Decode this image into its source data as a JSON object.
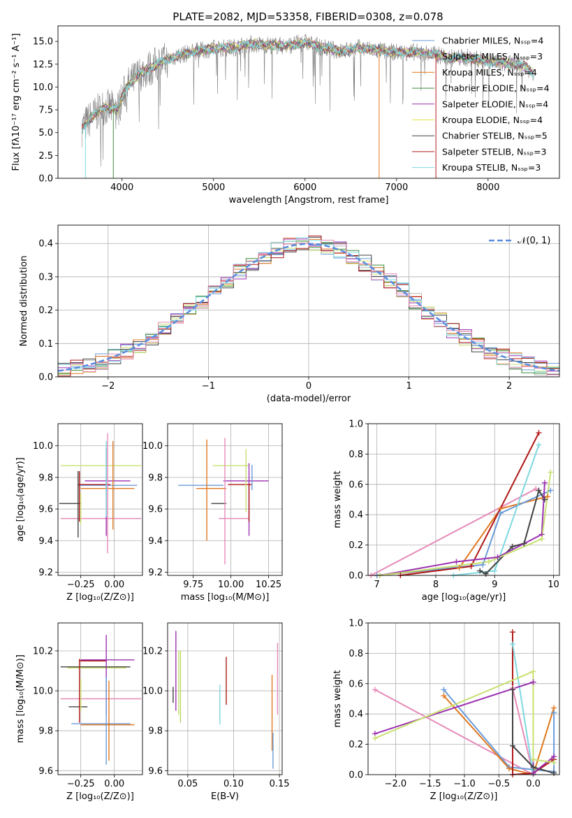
{
  "figure": {
    "title": "PLATE=2082, MJD=53358, FIBERID=0308, z=0.078"
  },
  "chart_data": [
    {
      "id": "spectrum",
      "type": "line",
      "xlabel": "wavelength [Angstrom, rest frame]",
      "ylabel": "Flux [fλ10⁻¹⁷ erg cm⁻² s⁻¹ A⁻¹]",
      "xlim": [
        3300,
        8780
      ],
      "ylim": [
        0,
        16.7
      ],
      "xticks": [
        4000,
        5000,
        6000,
        7000,
        8000
      ],
      "yticks": [
        0.0,
        2.5,
        5.0,
        7.5,
        10.0,
        12.5,
        15.0
      ],
      "grid": false,
      "legend_position": "upper right",
      "legend": [
        "Chabrier MILES, N_SSP=4",
        "Salpeter MILES, N_SSP=3",
        "Kroupa MILES, N_SSP=4",
        "Chabrier ELODIE, N_SSP=4",
        "Salpeter ELODIE, N_SSP=4",
        "Kroupa ELODIE, N_SSP=4",
        "Chabrier STELIB, N_SSP=5",
        "Salpeter STELIB, N_SSP=3",
        "Kroupa STELIB, N_SSP=3"
      ],
      "data_series": "grey",
      "continuum": {
        "x": [
          3560,
          3650,
          3800,
          3950,
          4050,
          4200,
          4400,
          4600,
          4800,
          5000,
          5200,
          5400,
          5600,
          5800,
          6000,
          6200,
          6400,
          6600,
          6800,
          7000,
          7200,
          7400,
          7600,
          7800,
          8000,
          8200,
          8400,
          8500
        ],
        "y": [
          5.5,
          6.5,
          7.8,
          7.5,
          10.0,
          11.5,
          12.6,
          13.4,
          13.9,
          14.2,
          14.3,
          14.7,
          14.6,
          14.5,
          14.9,
          14.3,
          13.9,
          14.3,
          14.0,
          13.8,
          13.8,
          13.6,
          13.2,
          13.2,
          12.8,
          12.6,
          12.3,
          11.5
        ]
      }
    },
    {
      "id": "residuals",
      "type": "step",
      "xlabel": "(data-model)/error",
      "ylabel": "Normed distribution",
      "xlim": [
        -2.5,
        2.5
      ],
      "ylim": [
        0,
        0.455
      ],
      "xticks": [
        -2,
        -1,
        0,
        1,
        2
      ],
      "yticks": [
        0.0,
        0.1,
        0.2,
        0.3,
        0.4
      ],
      "grid": true,
      "legend": [
        "𝒩(0, 1)"
      ],
      "legend_position": "upper right",
      "reference": {
        "mean": 0,
        "sigma": 1
      }
    },
    {
      "id": "age-vs-Z",
      "type": "errorbar",
      "xlabel": "Z [log₁₀(Z/Z⊙)]",
      "ylabel": "age  [log₁₀(age/yr)]",
      "xlim": [
        -0.42,
        0.21
      ],
      "ylim": [
        9.18,
        10.14
      ],
      "xticks": [
        -0.25,
        0.0
      ],
      "yticks": [
        9.2,
        9.4,
        9.6,
        9.8,
        10.0
      ],
      "grid": true,
      "points": [
        {
          "x": -0.1,
          "y": 9.875,
          "xerr": 0.3,
          "yerr": 0.0,
          "color": "#c8e070"
        },
        {
          "x": -0.05,
          "y": 9.75,
          "xerr": 0.22,
          "yerr": 0.0,
          "color": "#6a9bd8"
        },
        {
          "x": -0.05,
          "y": 9.778,
          "xerr": 0.17,
          "yerr": 0.0,
          "color": "#9b30b0"
        },
        {
          "x": -0.05,
          "y": 9.73,
          "xerr": 0.2,
          "yerr": 0.0,
          "color": "#e07820"
        },
        {
          "x": -0.15,
          "y": 9.755,
          "xerr": 0.12,
          "yerr": 0.0,
          "color": "#b01818"
        },
        {
          "x": -0.1,
          "y": 9.54,
          "xerr": 0.3,
          "yerr": 0.0,
          "color": "#e68ab8"
        },
        {
          "x": -0.33,
          "y": 9.635,
          "xerr": 0.08,
          "yerr": 0.0,
          "color": "#404040"
        },
        {
          "x": -0.27,
          "y": 9.63,
          "xerr": 0.0,
          "yerr": 0.21,
          "color": "#404040"
        },
        {
          "x": -0.26,
          "y": 9.68,
          "xerr": 0.0,
          "yerr": 0.16,
          "color": "#b01818"
        },
        {
          "x": -0.25,
          "y": 9.6,
          "xerr": 0.0,
          "yerr": 0.1,
          "color": "#c8e070"
        },
        {
          "x": -0.06,
          "y": 9.71,
          "xerr": 0.0,
          "yerr": 0.28,
          "color": "#9b30b0"
        },
        {
          "x": -0.05,
          "y": 9.7,
          "xerr": 0.0,
          "yerr": 0.38,
          "color": "#e68ab8"
        },
        {
          "x": -0.06,
          "y": 9.84,
          "xerr": 0.0,
          "yerr": 0.15,
          "color": "#6a9bd8"
        },
        {
          "x": -0.06,
          "y": 9.79,
          "xerr": 0.0,
          "yerr": 0.24,
          "color": "#7dd8e0"
        },
        {
          "x": -0.01,
          "y": 9.75,
          "xerr": 0.0,
          "yerr": 0.28,
          "color": "#e07820"
        }
      ]
    },
    {
      "id": "age-vs-mass",
      "type": "errorbar",
      "xlabel": "mass [log₁₀(M/M⊙)]",
      "xlim": [
        9.58,
        10.34
      ],
      "ylim": [
        9.18,
        10.14
      ],
      "xticks": [
        9.75,
        10.0,
        10.25
      ],
      "yticks": [
        9.2,
        9.4,
        9.6,
        9.8,
        10.0
      ],
      "grid": true,
      "points": [
        {
          "x": 10.0,
          "y": 9.875,
          "xerr": 0.12,
          "yerr": 0.0,
          "color": "#c8e070"
        },
        {
          "x": 9.8,
          "y": 9.75,
          "xerr": 0.15,
          "yerr": 0.0,
          "color": "#6a9bd8"
        },
        {
          "x": 10.1,
          "y": 9.778,
          "xerr": 0.15,
          "yerr": 0.0,
          "color": "#9b30b0"
        },
        {
          "x": 9.87,
          "y": 9.73,
          "xerr": 0.1,
          "yerr": 0.0,
          "color": "#e07820"
        },
        {
          "x": 10.06,
          "y": 9.755,
          "xerr": 0.08,
          "yerr": 0.0,
          "color": "#b01818"
        },
        {
          "x": 10.02,
          "y": 9.54,
          "xerr": 0.1,
          "yerr": 0.0,
          "color": "#e68ab8"
        },
        {
          "x": 9.92,
          "y": 9.635,
          "xerr": 0.05,
          "yerr": 0.0,
          "color": "#404040"
        },
        {
          "x": 9.84,
          "y": 9.72,
          "xerr": 0.0,
          "yerr": 0.32,
          "color": "#e07820"
        },
        {
          "x": 9.96,
          "y": 9.65,
          "xerr": 0.0,
          "yerr": 0.4,
          "color": "#e68ab8"
        },
        {
          "x": 10.1,
          "y": 9.78,
          "xerr": 0.0,
          "yerr": 0.2,
          "color": "#c8e070"
        },
        {
          "x": 10.12,
          "y": 9.66,
          "xerr": 0.0,
          "yerr": 0.23,
          "color": "#9b30b0"
        },
        {
          "x": 10.12,
          "y": 9.64,
          "xerr": 0.0,
          "yerr": 0.12,
          "color": "#b01818"
        },
        {
          "x": 10.14,
          "y": 9.8,
          "xerr": 0.0,
          "yerr": 0.08,
          "color": "#6a9bd8"
        }
      ]
    },
    {
      "id": "massweight-vs-age",
      "type": "line",
      "xlabel": "age  [log₁₀(age/yr)]",
      "ylabel": "mass weight",
      "xlim": [
        6.85,
        10.1
      ],
      "ylim": [
        0,
        1.0
      ],
      "xticks": [
        7,
        8,
        9,
        10
      ],
      "yticks": [
        0.0,
        0.2,
        0.4,
        0.6,
        0.8,
        1.0
      ],
      "grid": true,
      "series": [
        {
          "color": "#e68ab8",
          "x": [
            6.9,
            9.7
          ],
          "y": [
            0.0,
            0.57
          ]
        },
        {
          "color": "#e07820",
          "x": [
            7.0,
            8.4,
            9.1,
            9.9
          ],
          "y": [
            0.0,
            0.05,
            0.44,
            0.52
          ]
        },
        {
          "color": "#6a9bd8",
          "x": [
            7.0,
            8.8,
            9.1,
            9.95
          ],
          "y": [
            0.0,
            0.07,
            0.41,
            0.56
          ]
        },
        {
          "color": "#b01818",
          "x": [
            7.4,
            8.6,
            9.75
          ],
          "y": [
            0.0,
            0.06,
            0.94
          ]
        },
        {
          "color": "#7dd8e0",
          "x": [
            8.3,
            9.0,
            9.75
          ],
          "y": [
            0.0,
            0.03,
            0.86
          ]
        },
        {
          "color": "#404040",
          "x": [
            8.75,
            8.85,
            9.3,
            9.5,
            9.75,
            9.85
          ],
          "y": [
            0.03,
            0.01,
            0.19,
            0.21,
            0.56,
            0.5
          ]
        },
        {
          "color": "#9b30b0",
          "x": [
            7.05,
            8.35,
            9.05,
            9.8,
            9.85
          ],
          "y": [
            0.0,
            0.09,
            0.12,
            0.27,
            0.61
          ]
        },
        {
          "color": "#c8e070",
          "x": [
            7.05,
            8.9,
            9.8,
            9.95
          ],
          "y": [
            0.0,
            0.09,
            0.24,
            0.68
          ]
        }
      ]
    },
    {
      "id": "mass-vs-Z",
      "type": "errorbar",
      "xlabel": "Z [log₁₀(Z/Z⊙)]",
      "ylabel": "mass [log₁₀(M/M⊙)]",
      "xlim": [
        -0.42,
        0.21
      ],
      "ylim": [
        9.58,
        10.34
      ],
      "xticks": [
        -0.25,
        0.0
      ],
      "yticks": [
        9.6,
        9.8,
        10.0,
        10.2
      ],
      "grid": true,
      "points": [
        {
          "x": -0.14,
          "y": 10.12,
          "xerr": 0.26,
          "yerr": 0.0,
          "color": "#404040"
        },
        {
          "x": -0.13,
          "y": 10.115,
          "xerr": 0.22,
          "yerr": 0.0,
          "color": "#c8e070"
        },
        {
          "x": -0.05,
          "y": 10.155,
          "xerr": 0.2,
          "yerr": 0.0,
          "color": "#9b30b0"
        },
        {
          "x": -0.16,
          "y": 10.15,
          "xerr": 0.1,
          "yerr": 0.0,
          "color": "#b01818"
        },
        {
          "x": -0.1,
          "y": 9.96,
          "xerr": 0.3,
          "yerr": 0.0,
          "color": "#e68ab8"
        },
        {
          "x": -0.1,
          "y": 9.835,
          "xerr": 0.22,
          "yerr": 0.0,
          "color": "#6a9bd8"
        },
        {
          "x": -0.05,
          "y": 9.83,
          "xerr": 0.2,
          "yerr": 0.0,
          "color": "#e07820"
        },
        {
          "x": -0.27,
          "y": 9.92,
          "xerr": 0.07,
          "yerr": 0.0,
          "color": "#404040"
        },
        {
          "x": -0.26,
          "y": 10.0,
          "xerr": 0.0,
          "yerr": 0.16,
          "color": "#b01818"
        },
        {
          "x": -0.25,
          "y": 9.98,
          "xerr": 0.0,
          "yerr": 0.08,
          "color": "#c8e070"
        },
        {
          "x": -0.06,
          "y": 10.08,
          "xerr": 0.0,
          "yerr": 0.2,
          "color": "#9b30b0"
        },
        {
          "x": -0.06,
          "y": 9.85,
          "xerr": 0.0,
          "yerr": 0.22,
          "color": "#6a9bd8"
        },
        {
          "x": -0.04,
          "y": 9.85,
          "xerr": 0.0,
          "yerr": 0.2,
          "color": "#e07820"
        }
      ]
    },
    {
      "id": "mass-vs-EBV",
      "type": "errorbar",
      "xlabel": "E(B-V)",
      "xlim": [
        0.028,
        0.153
      ],
      "ylim": [
        9.58,
        10.34
      ],
      "xticks": [
        0.05,
        0.1,
        0.15
      ],
      "yticks": [
        9.6,
        9.8,
        10.0,
        10.2
      ],
      "grid": true,
      "points": [
        {
          "x": 0.034,
          "y": 9.98,
          "xerr": 0.0,
          "yerr": 0.04,
          "color": "#404040"
        },
        {
          "x": 0.037,
          "y": 10.1,
          "xerr": 0.0,
          "yerr": 0.2,
          "color": "#9b30b0"
        },
        {
          "x": 0.04,
          "y": 10.04,
          "xerr": 0.0,
          "yerr": 0.16,
          "color": "#c8e070"
        },
        {
          "x": 0.042,
          "y": 10.02,
          "xerr": 0.0,
          "yerr": 0.18,
          "color": "#b8d860"
        },
        {
          "x": 0.085,
          "y": 9.93,
          "xerr": 0.0,
          "yerr": 0.1,
          "color": "#7dd8e0"
        },
        {
          "x": 0.092,
          "y": 10.05,
          "xerr": 0.0,
          "yerr": 0.12,
          "color": "#b01818"
        },
        {
          "x": 0.142,
          "y": 9.89,
          "xerr": 0.0,
          "yerr": 0.19,
          "color": "#e07820"
        },
        {
          "x": 0.143,
          "y": 9.7,
          "xerr": 0.0,
          "yerr": 0.09,
          "color": "#6a9bd8"
        },
        {
          "x": 0.148,
          "y": 10.06,
          "xerr": 0.0,
          "yerr": 0.18,
          "color": "#e68ab8"
        }
      ]
    },
    {
      "id": "massweight-vs-Z",
      "type": "line",
      "xlabel": "Z [log₁₀(Z/Z⊙)]",
      "ylabel": "mass weight",
      "xlim": [
        -2.4,
        0.38
      ],
      "ylim": [
        0,
        1.0
      ],
      "xticks": [
        -2.0,
        -1.5,
        -1.0,
        -0.5,
        0.0
      ],
      "yticks": [
        0.0,
        0.2,
        0.4,
        0.6,
        0.8,
        1.0
      ],
      "grid": true,
      "series": [
        {
          "color": "#e68ab8",
          "x": [
            -2.3,
            0.0,
            -0.3
          ],
          "y": [
            0.56,
            0.0,
            0.57
          ]
        },
        {
          "color": "#6a9bd8",
          "x": [
            -1.3,
            -0.35,
            0.3,
            0.3
          ],
          "y": [
            0.56,
            0.05,
            0.02,
            0.41
          ]
        },
        {
          "color": "#e07820",
          "x": [
            -1.3,
            -0.35,
            0.0,
            0.3
          ],
          "y": [
            0.52,
            0.04,
            0.0,
            0.44
          ]
        },
        {
          "color": "#b01818",
          "x": [
            -0.3,
            -0.3,
            0.0,
            0.3
          ],
          "y": [
            0.94,
            0.0,
            0.01,
            0.1
          ]
        },
        {
          "color": "#7dd8e0",
          "x": [
            -0.3,
            0.0,
            0.0
          ],
          "y": [
            0.86,
            0.0,
            0.03
          ]
        },
        {
          "color": "#404040",
          "x": [
            -0.3,
            -0.3,
            0.0,
            0.3
          ],
          "y": [
            0.56,
            0.19,
            0.05,
            0.01
          ]
        },
        {
          "color": "#9b30b0",
          "x": [
            -2.3,
            0.0,
            0.0,
            0.3
          ],
          "y": [
            0.27,
            0.61,
            0.01,
            0.12
          ]
        },
        {
          "color": "#c8e070",
          "x": [
            -2.3,
            0.0,
            0.0,
            0.3
          ],
          "y": [
            0.24,
            0.68,
            0.1,
            0.08
          ]
        }
      ]
    }
  ]
}
